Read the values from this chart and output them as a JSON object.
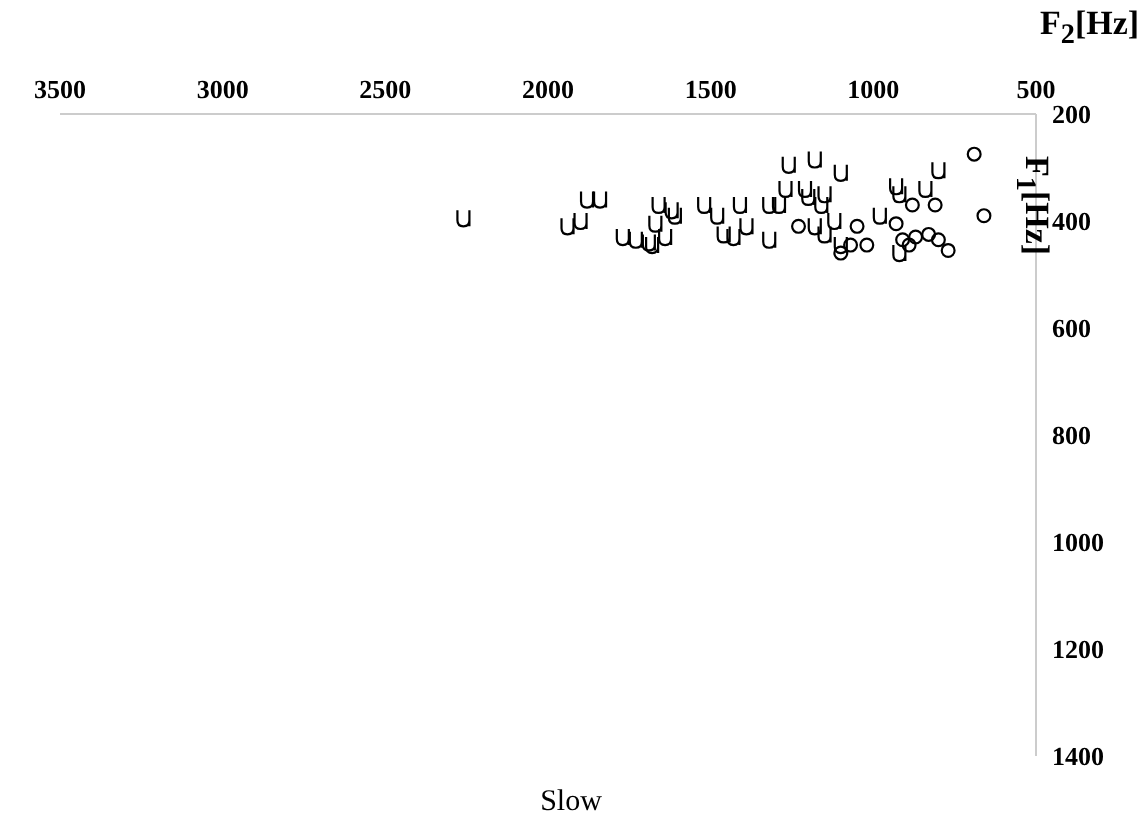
{
  "chart_data": {
    "type": "scatter",
    "title": "Slow",
    "xlabel": "F$_{2}$[Hz]",
    "ylabel": "F$_{1}$[Hz]",
    "xlim": [
      3500,
      500
    ],
    "xticks": [
      3500,
      3000,
      2500,
      2000,
      1500,
      1000,
      500
    ],
    "ylim": [
      1400,
      200
    ],
    "yticks": [
      200,
      400,
      600,
      800,
      1000,
      1200,
      1400
    ],
    "grid": false,
    "legend": false,
    "series": [
      {
        "color": "#000000",
        "x": [
          2260,
          1880,
          1840,
          1940,
          1900,
          1770,
          1730,
          1690,
          1680,
          1660,
          1670,
          1640,
          1610,
          1620,
          1520,
          1480,
          1410,
          1460,
          1430,
          1390,
          1260,
          1180,
          1100,
          800,
          1320,
          1290,
          1270,
          1210,
          1200,
          1160,
          1150,
          1320,
          1180,
          1150,
          1120,
          1100,
          980,
          930,
          920,
          840,
          920
        ],
        "values": [
          395,
          360,
          360,
          410,
          400,
          430,
          435,
          440,
          445,
          370,
          405,
          430,
          390,
          380,
          370,
          390,
          370,
          425,
          430,
          410,
          295,
          285,
          310,
          305,
          370,
          370,
          340,
          340,
          355,
          370,
          350,
          435,
          410,
          425,
          400,
          445,
          390,
          335,
          350,
          340,
          460
        ]
      },
      {
        "marker": "circle",
        "color": "#000000",
        "x": [
          690,
          660,
          1230,
          1050,
          1100,
          1070,
          1020,
          880,
          810,
          930,
          910,
          870,
          830,
          800,
          770,
          890
        ],
        "values": [
          275,
          390,
          410,
          410,
          460,
          445,
          445,
          370,
          370,
          405,
          435,
          430,
          425,
          435,
          455,
          445
        ]
      }
    ]
  }
}
